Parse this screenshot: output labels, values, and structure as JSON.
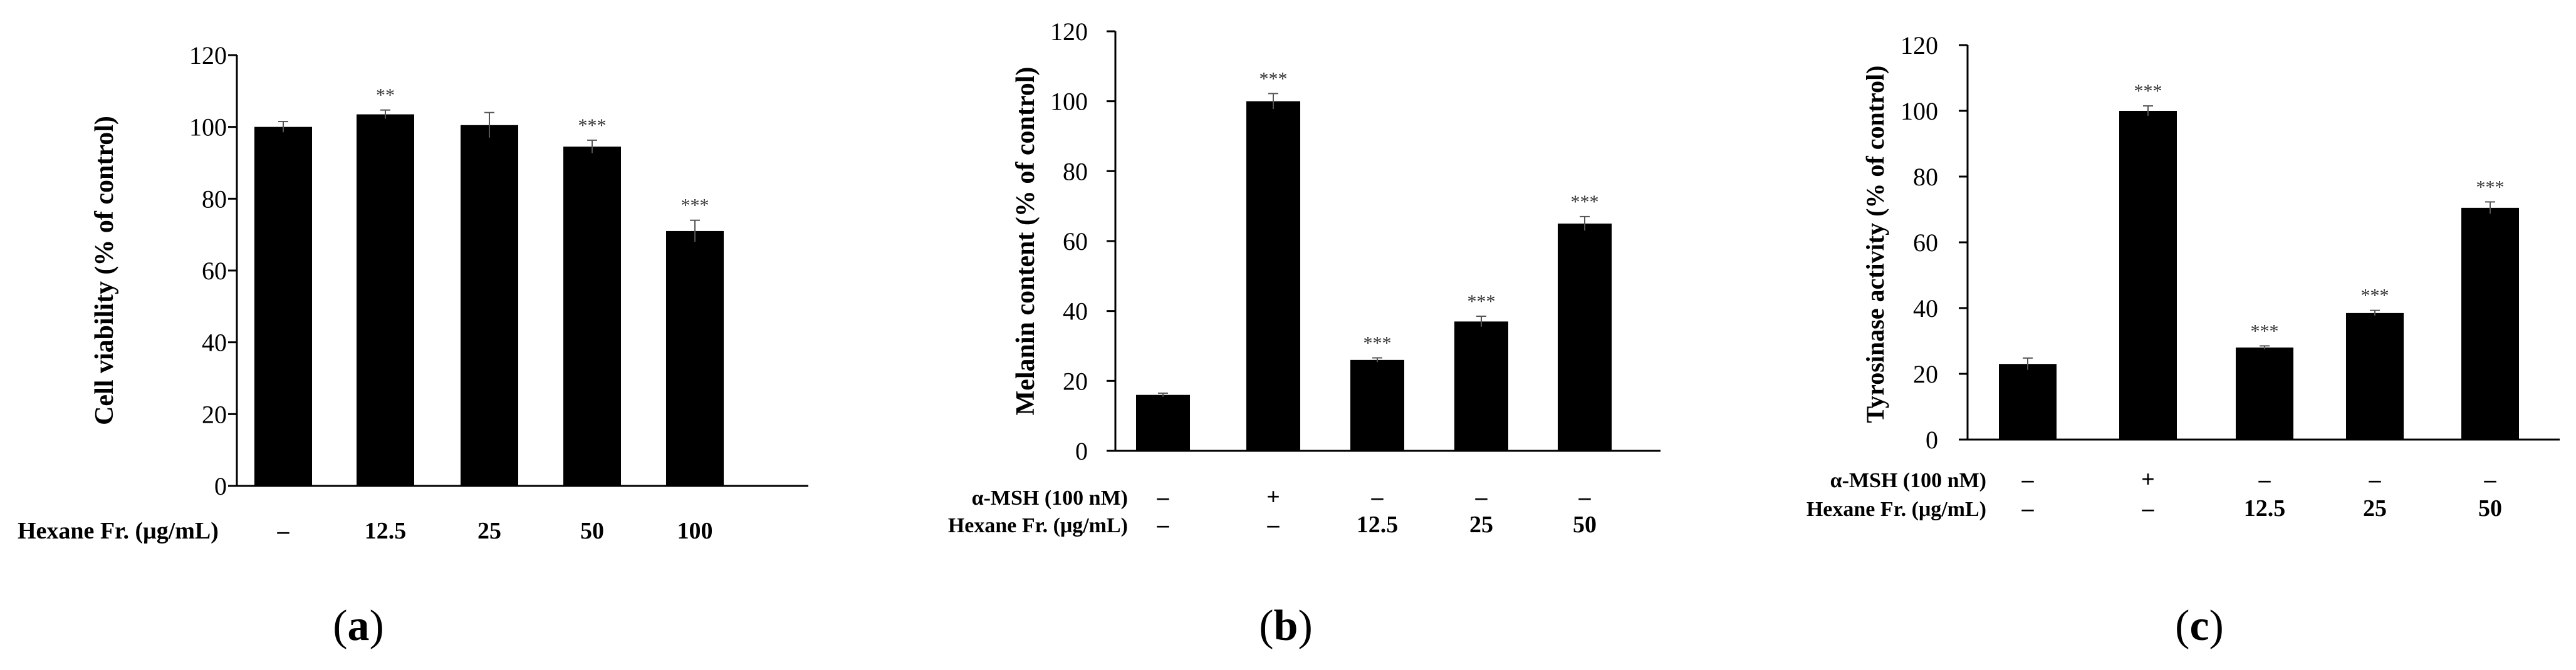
{
  "figure_labels": {
    "a": "a",
    "b": "b",
    "c": "c"
  },
  "chart_data": [
    {
      "type": "bar",
      "panel": "a",
      "ylabel": "Cell viability (% of control)",
      "ylim": [
        0,
        120
      ],
      "yticks": [
        0,
        20,
        40,
        60,
        80,
        100,
        120
      ],
      "rows": [
        {
          "label": "Hexane Fr. (μg/mL)",
          "values": [
            "–",
            "12.5",
            "25",
            "50",
            "100"
          ]
        }
      ],
      "values": [
        100,
        103.5,
        100.5,
        94.5,
        71
      ],
      "errors": [
        1.5,
        1.2,
        3.5,
        1.8,
        3
      ],
      "significance": [
        "",
        "**",
        "",
        "***",
        "***"
      ]
    },
    {
      "type": "bar",
      "panel": "b",
      "ylabel": "Melanin content (% of control)",
      "ylim": [
        0,
        120
      ],
      "yticks": [
        0,
        20,
        40,
        60,
        80,
        100,
        120
      ],
      "rows": [
        {
          "label": "α-MSH (100 nM)",
          "values": [
            "–",
            "+",
            "–",
            "–",
            "–"
          ]
        },
        {
          "label": "Hexane Fr. (μg/mL)",
          "values": [
            "–",
            "–",
            "12.5",
            "25",
            "50"
          ]
        }
      ],
      "values": [
        16,
        100,
        26,
        37,
        65
      ],
      "errors": [
        0.5,
        2.2,
        0.6,
        1.5,
        2
      ],
      "significance": [
        "",
        "***",
        "***",
        "***",
        "***"
      ]
    },
    {
      "type": "bar",
      "panel": "c",
      "ylabel": "Tyrosinase activity (% of control)",
      "ylim": [
        0,
        120
      ],
      "yticks": [
        0,
        20,
        40,
        60,
        80,
        100,
        120
      ],
      "rows": [
        {
          "label": "α-MSH (100 nM)",
          "values": [
            "–",
            "+",
            "–",
            "–",
            "–"
          ]
        },
        {
          "label": "Hexane Fr. (μg/mL)",
          "values": [
            "–",
            "–",
            "12.5",
            "25",
            "50"
          ]
        }
      ],
      "values": [
        23,
        100,
        28,
        38.5,
        70.5
      ],
      "errors": [
        1.8,
        1.5,
        0.5,
        0.8,
        1.8
      ],
      "significance": [
        "",
        "***",
        "***",
        "***",
        "***"
      ]
    }
  ]
}
